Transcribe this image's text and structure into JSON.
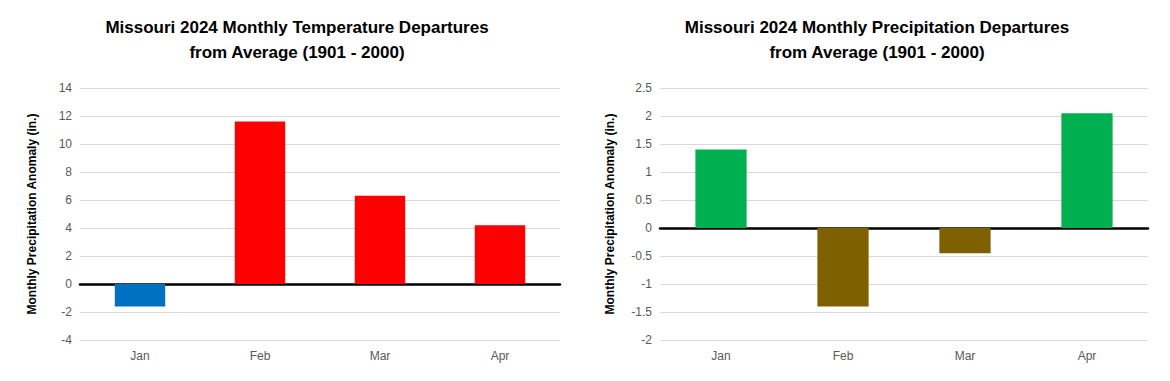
{
  "chart_data": [
    {
      "type": "bar",
      "title": "Missouri 2024 Monthly Temperature Departures\nfrom Average (1901 - 2000)",
      "y_label": "Monthly Precipitation Anomaly (in.)",
      "categories": [
        "Jan",
        "Feb",
        "Mar",
        "Apr"
      ],
      "values": [
        -1.6,
        11.6,
        6.3,
        4.2
      ],
      "colors": [
        "#0070c0",
        "#ff0000",
        "#ff0000",
        "#ff0000"
      ],
      "ylim": [
        -4,
        14
      ],
      "yticks": [
        -4,
        -2,
        0,
        2,
        4,
        6,
        8,
        10,
        12,
        14
      ],
      "grid": true
    },
    {
      "type": "bar",
      "title": "Missouri 2024 Monthly Precipitation Departures\nfrom Average (1901 - 2000)",
      "y_label": "Monthly Precipitation Anomaly (in.)",
      "categories": [
        "Jan",
        "Feb",
        "Mar",
        "Apr"
      ],
      "values": [
        1.4,
        -1.4,
        -0.45,
        2.05
      ],
      "colors": [
        "#00b050",
        "#7f6000",
        "#7f6000",
        "#00b050"
      ],
      "ylim": [
        -2,
        2.5
      ],
      "yticks": [
        -2,
        -1.5,
        -1,
        -0.5,
        0,
        0.5,
        1,
        1.5,
        2,
        2.5
      ],
      "grid": true
    }
  ]
}
